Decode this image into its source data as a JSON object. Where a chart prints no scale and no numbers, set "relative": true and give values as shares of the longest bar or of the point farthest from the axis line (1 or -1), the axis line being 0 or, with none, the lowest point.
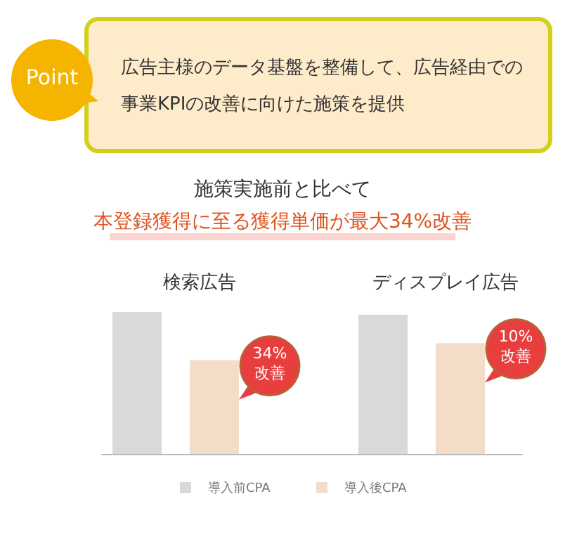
{
  "chart_data": [
    {
      "type": "other",
      "title": "Point",
      "annotations": [
        "広告主様のデータ基盤を整備して、広告経由での事業KPIの改善に向けた施策を提供"
      ]
    },
    {
      "type": "bar",
      "title": "施策実施前と比べて",
      "subtitle": "本登録獲得に至る獲得単価が最大34%改善",
      "relative": true,
      "categories": [
        "検索広告",
        "ディスプレイ広告"
      ],
      "series": [
        {
          "name": "導入前CPA",
          "color": "#d9d9d9",
          "values": [
            1,
            0.98
          ]
        },
        {
          "name": "導入後CPA",
          "color": "#f3dcc8",
          "values": [
            0.66,
            0.78
          ]
        }
      ],
      "annotations": [
        "34% 改善",
        "10% 改善"
      ],
      "legend": "bottom"
    }
  ]
}
